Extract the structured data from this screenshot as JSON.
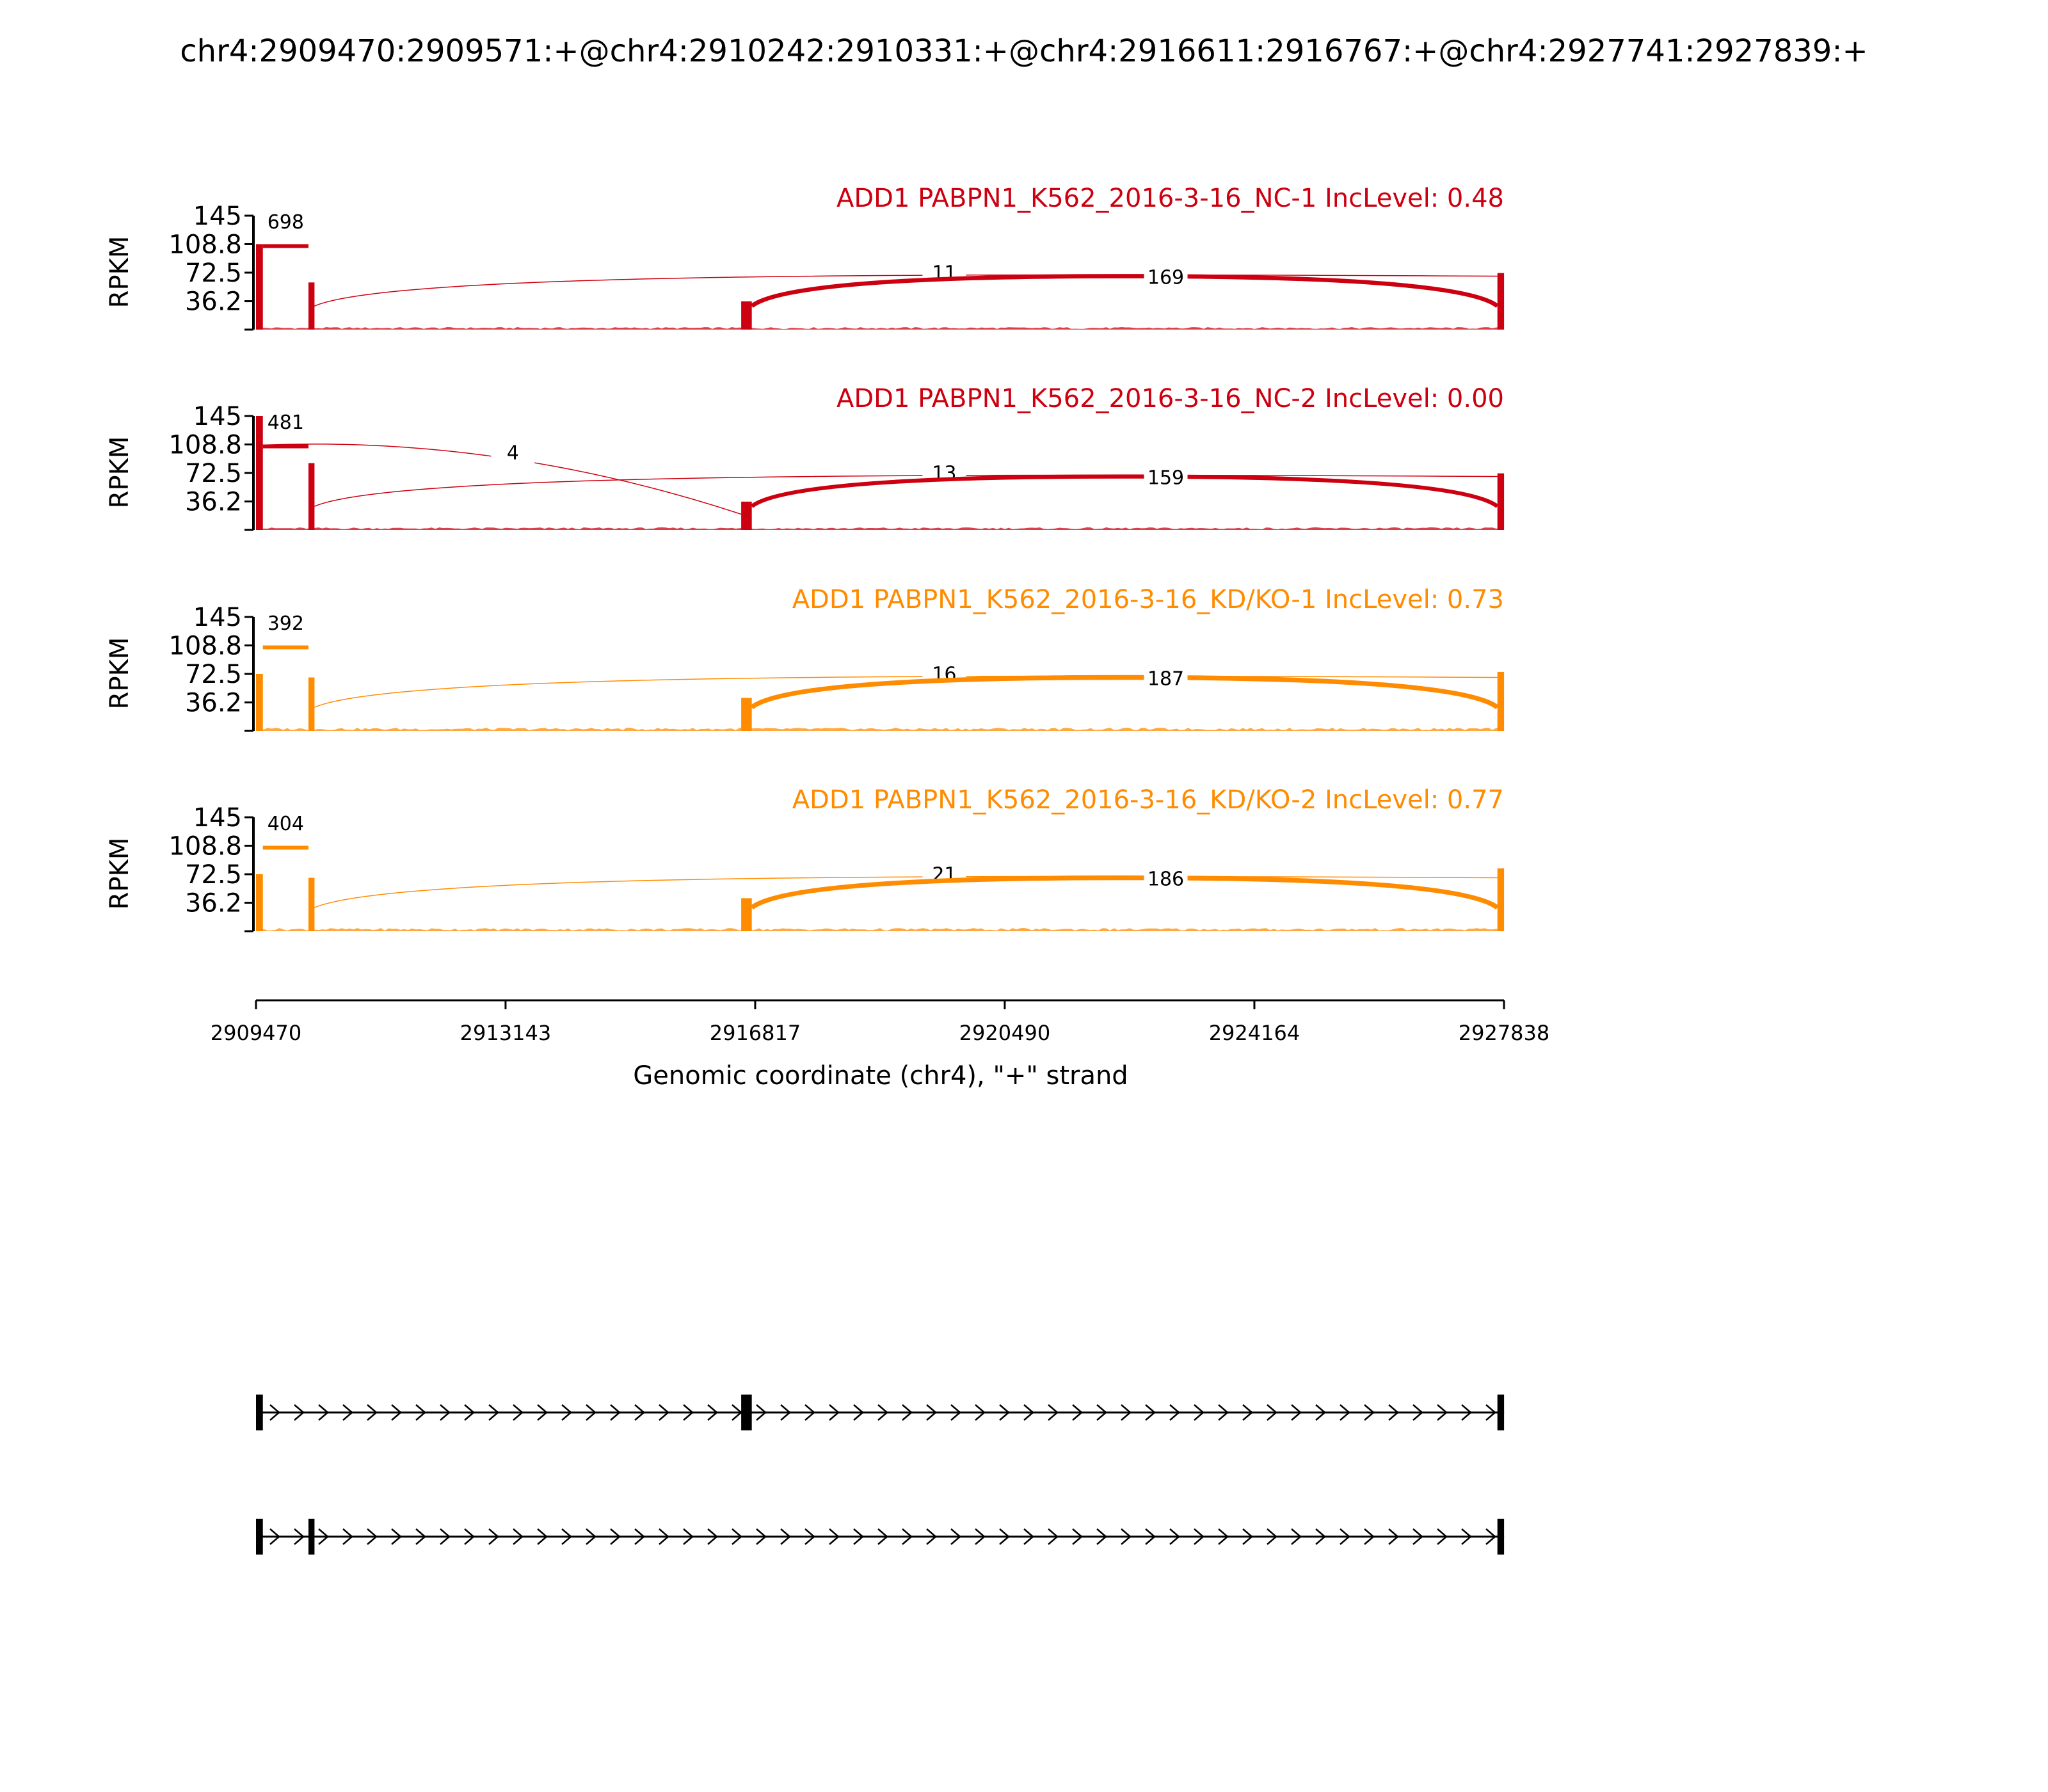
{
  "page_title": "chr4:2909470:2909571:+@chr4:2910242:2910331:+@chr4:2916611:2916767:+@chr4:2927741:2927839:+",
  "chart_data": {
    "type": "area",
    "genome_start": 2909470,
    "genome_end": 2927838,
    "ylabel": "RPKM",
    "yticks": [
      "36.2",
      "72.5",
      "108.8",
      "145"
    ],
    "ytick_values": [
      36.2,
      72.5,
      108.8,
      145
    ],
    "ylim": [
      0,
      145
    ],
    "xlabel": "Genomic coordinate (chr4), \"+\" strand",
    "xticks": [
      "2909470",
      "2913143",
      "2916817",
      "2920490",
      "2924164",
      "2927838"
    ],
    "xtick_values": [
      2909470,
      2913143,
      2916817,
      2920490,
      2924164,
      2927838
    ],
    "exons": [
      {
        "start": 2909470,
        "end": 2909571
      },
      {
        "start": 2910242,
        "end": 2910331
      },
      {
        "start": 2916611,
        "end": 2916767
      },
      {
        "start": 2927741,
        "end": 2927839
      }
    ],
    "panels": [
      {
        "title": "ADD1 PABPN1_K562_2016-3-16_NC-1 IncLevel: 0.48",
        "color": "#CC0010",
        "exon_heights": [
          108.8,
          60,
          36,
          72
        ],
        "junctions": [
          {
            "label": "698",
            "from": 2909571,
            "to": 2910242
          },
          {
            "label": "11",
            "from": 2910331,
            "to": 2927741
          },
          {
            "label": "169",
            "from": 2916767,
            "to": 2927741
          }
        ]
      },
      {
        "title": "ADD1 PABPN1_K562_2016-3-16_NC-2 IncLevel: 0.00",
        "color": "#CC0010",
        "exon_heights": [
          145,
          85,
          36,
          72
        ],
        "junctions": [
          {
            "label": "481",
            "from": 2909571,
            "to": 2910242
          },
          {
            "label": "4",
            "from": 2909571,
            "to": 2916611
          },
          {
            "label": "13",
            "from": 2910331,
            "to": 2927741
          },
          {
            "label": "159",
            "from": 2916767,
            "to": 2927741
          }
        ]
      },
      {
        "title": "ADD1 PABPN1_K562_2016-3-16_KD/KO-1 IncLevel: 0.73",
        "color": "#FF8C00",
        "exon_heights": [
          72.5,
          68,
          42,
          75
        ],
        "junctions": [
          {
            "label": "392",
            "from": 2909571,
            "to": 2910242
          },
          {
            "label": "16",
            "from": 2910331,
            "to": 2927741
          },
          {
            "label": "187",
            "from": 2916767,
            "to": 2927741
          }
        ]
      },
      {
        "title": "ADD1 PABPN1_K562_2016-3-16_KD/KO-2 IncLevel: 0.77",
        "color": "#FF8C00",
        "exon_heights": [
          72.5,
          68,
          42,
          80
        ],
        "junctions": [
          {
            "label": "404",
            "from": 2909571,
            "to": 2910242
          },
          {
            "label": "21",
            "from": 2910331,
            "to": 2927741
          },
          {
            "label": "186",
            "from": 2916767,
            "to": 2927741
          }
        ]
      }
    ],
    "isoforms": [
      {
        "exons": [
          [
            2909470,
            2909571
          ],
          [
            2916611,
            2916767
          ],
          [
            2927741,
            2927839
          ]
        ]
      },
      {
        "exons": [
          [
            2909470,
            2909571
          ],
          [
            2910242,
            2910331
          ],
          [
            2927741,
            2927839
          ]
        ]
      }
    ]
  }
}
